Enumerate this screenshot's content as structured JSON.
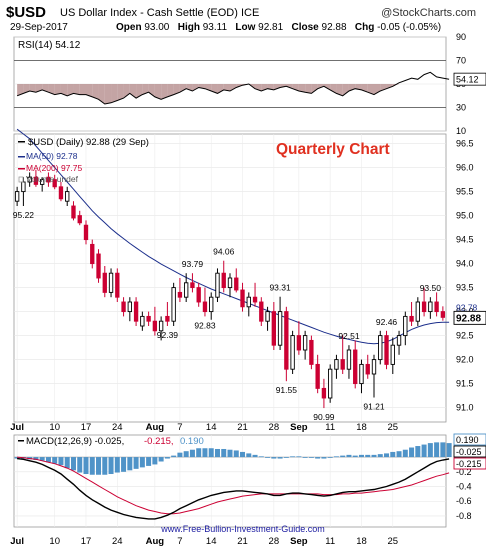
{
  "header": {
    "symbol": "$USD",
    "name": "US Dollar Index - Cash Settle (EOD)",
    "exchange": "ICE",
    "site": "@StockCharts.com",
    "date": "29-Sep-2017",
    "open_label": "Open",
    "open": "93.00",
    "high_label": "High",
    "high": "93.11",
    "low_label": "Low",
    "low": "92.81",
    "close_label": "Close",
    "close": "92.88",
    "chg_label": "Chg",
    "chg": "-0.05 (-0.05%)"
  },
  "annotation": "Quarterly Chart",
  "footer": "www.Free-Bullion-Investment-Guide.com",
  "colors": {
    "up": "#000000",
    "down": "#cc0033",
    "ma50": "#1c2f8c",
    "ma200": "#cc0033",
    "macd": "#000000",
    "signal": "#cc0033",
    "hist": "#4f93c8",
    "rsi": "#000000",
    "rsi_fill": "#b08585",
    "annotation": "#e03020"
  },
  "chart_data": [
    {
      "type": "line",
      "panel": "rsi",
      "label": "RSI(14) 54.12",
      "ylim": [
        10,
        90
      ],
      "y_ticks": [
        90,
        70,
        50,
        30,
        10
      ],
      "guide_levels": [
        70,
        30
      ],
      "last_value": "54.12",
      "values": [
        40,
        42,
        44,
        43,
        45,
        43,
        41,
        42,
        40,
        42,
        41,
        41,
        39,
        37,
        33,
        34,
        36,
        38,
        42,
        38,
        41,
        43,
        39,
        37,
        39,
        41,
        43,
        46,
        44,
        47,
        46,
        44,
        42,
        45,
        44,
        47,
        49,
        50,
        46,
        44,
        46,
        45,
        47,
        48,
        46,
        44,
        43,
        42,
        46,
        48,
        45,
        42,
        40,
        44,
        46,
        45,
        43,
        41,
        44,
        46,
        48,
        51,
        53,
        55,
        54,
        58,
        60,
        56,
        55,
        54
      ]
    },
    {
      "type": "candlestick",
      "panel": "price",
      "legend": [
        {
          "name": "$USD (Daily) 92.88 (29 Sep)"
        },
        {
          "name": "MA(50) 92.78"
        },
        {
          "name": "MA(200) 97.75"
        },
        {
          "name": "Volume undef"
        }
      ],
      "ylim": [
        90.7,
        96.7
      ],
      "y_ticks": [
        "96.5",
        "96.0",
        "95.5",
        "95.0",
        "94.5",
        "94.0",
        "93.5",
        "93.0",
        "92.5",
        "92.0",
        "91.5",
        "91.0"
      ],
      "x_ticks": [
        "Jul",
        "10",
        "17",
        "24",
        "Aug",
        "7",
        "14",
        "21",
        "28",
        "Sep",
        "11",
        "18",
        "25"
      ],
      "x_tick_index": [
        0,
        6,
        11,
        16,
        22,
        26,
        31,
        36,
        41,
        45,
        50,
        55,
        60
      ],
      "last_price_label": "92.88",
      "ma50_label": "92.78",
      "labels": [
        {
          "text": "95.22",
          "index": 1,
          "value": 95.22,
          "pos": "below"
        },
        {
          "text": "93.79",
          "index": 28,
          "value": 93.79,
          "pos": "above"
        },
        {
          "text": "94.06",
          "index": 33,
          "value": 94.06,
          "pos": "above"
        },
        {
          "text": "92.83",
          "index": 30,
          "value": 92.83,
          "pos": "below"
        },
        {
          "text": "92.39",
          "index": 24,
          "value": 92.39,
          "pos": "below"
        },
        {
          "text": "93.31",
          "index": 42,
          "value": 93.31,
          "pos": "above"
        },
        {
          "text": "91.55",
          "index": 43,
          "value": 91.55,
          "pos": "below"
        },
        {
          "text": "90.99",
          "index": 49,
          "value": 90.99,
          "pos": "below"
        },
        {
          "text": "92.51",
          "index": 53,
          "value": 92.51,
          "pos": "above"
        },
        {
          "text": "92.46",
          "index": 59,
          "value": 92.46,
          "pos": "above"
        },
        {
          "text": "91.21",
          "index": 57,
          "value": 91.21,
          "pos": "below"
        },
        {
          "text": "93.50",
          "index": 66,
          "value": 93.5,
          "pos": "above"
        }
      ],
      "candles": [
        {
          "o": 95.3,
          "h": 95.6,
          "l": 95.2,
          "c": 95.5
        },
        {
          "o": 95.5,
          "h": 95.8,
          "l": 95.2,
          "c": 95.7
        },
        {
          "o": 95.7,
          "h": 95.9,
          "l": 95.6,
          "c": 95.8
        },
        {
          "o": 95.8,
          "h": 95.95,
          "l": 95.6,
          "c": 95.65
        },
        {
          "o": 95.65,
          "h": 95.8,
          "l": 95.5,
          "c": 95.75
        },
        {
          "o": 95.8,
          "h": 95.9,
          "l": 95.6,
          "c": 95.7
        },
        {
          "o": 95.75,
          "h": 95.85,
          "l": 95.55,
          "c": 95.6
        },
        {
          "o": 95.6,
          "h": 95.7,
          "l": 95.3,
          "c": 95.35
        },
        {
          "o": 95.3,
          "h": 95.6,
          "l": 95.2,
          "c": 95.5
        },
        {
          "o": 95.2,
          "h": 95.3,
          "l": 94.9,
          "c": 94.95
        },
        {
          "o": 95.0,
          "h": 95.1,
          "l": 94.8,
          "c": 94.85
        },
        {
          "o": 94.8,
          "h": 94.9,
          "l": 94.4,
          "c": 94.5
        },
        {
          "o": 94.4,
          "h": 94.5,
          "l": 93.9,
          "c": 94.0
        },
        {
          "o": 94.2,
          "h": 94.3,
          "l": 93.6,
          "c": 93.7
        },
        {
          "o": 93.8,
          "h": 93.95,
          "l": 93.3,
          "c": 93.4
        },
        {
          "o": 93.4,
          "h": 93.9,
          "l": 93.3,
          "c": 93.8
        },
        {
          "o": 93.8,
          "h": 93.9,
          "l": 93.2,
          "c": 93.3
        },
        {
          "o": 93.2,
          "h": 93.3,
          "l": 92.9,
          "c": 93.0
        },
        {
          "o": 93.0,
          "h": 93.3,
          "l": 92.8,
          "c": 93.2
        },
        {
          "o": 93.2,
          "h": 93.3,
          "l": 92.7,
          "c": 92.8
        },
        {
          "o": 92.7,
          "h": 93.0,
          "l": 92.6,
          "c": 92.9
        },
        {
          "o": 92.9,
          "h": 93.0,
          "l": 92.7,
          "c": 92.8
        },
        {
          "o": 92.8,
          "h": 93.1,
          "l": 92.5,
          "c": 92.6
        },
        {
          "o": 92.6,
          "h": 92.9,
          "l": 92.4,
          "c": 92.8
        },
        {
          "o": 92.9,
          "h": 93.2,
          "l": 92.7,
          "c": 92.8
        },
        {
          "o": 92.8,
          "h": 93.6,
          "l": 92.7,
          "c": 93.5
        },
        {
          "o": 93.4,
          "h": 93.7,
          "l": 93.2,
          "c": 93.3
        },
        {
          "o": 93.3,
          "h": 93.8,
          "l": 93.2,
          "c": 93.6
        },
        {
          "o": 93.6,
          "h": 93.8,
          "l": 93.4,
          "c": 93.5
        },
        {
          "o": 93.5,
          "h": 93.6,
          "l": 93.1,
          "c": 93.2
        },
        {
          "o": 93.2,
          "h": 93.5,
          "l": 92.9,
          "c": 93.0
        },
        {
          "o": 93.0,
          "h": 93.4,
          "l": 92.83,
          "c": 93.3
        },
        {
          "o": 93.3,
          "h": 93.9,
          "l": 93.2,
          "c": 93.8
        },
        {
          "o": 93.8,
          "h": 94.06,
          "l": 93.4,
          "c": 93.5
        },
        {
          "o": 93.5,
          "h": 93.8,
          "l": 93.3,
          "c": 93.7
        },
        {
          "o": 93.7,
          "h": 93.9,
          "l": 93.4,
          "c": 93.45
        },
        {
          "o": 93.45,
          "h": 93.6,
          "l": 93.0,
          "c": 93.1
        },
        {
          "o": 93.1,
          "h": 93.4,
          "l": 92.9,
          "c": 93.3
        },
        {
          "o": 93.3,
          "h": 93.6,
          "l": 93.1,
          "c": 93.2
        },
        {
          "o": 93.2,
          "h": 93.3,
          "l": 92.7,
          "c": 92.8
        },
        {
          "o": 92.8,
          "h": 93.1,
          "l": 92.6,
          "c": 93.0
        },
        {
          "o": 93.0,
          "h": 93.2,
          "l": 92.2,
          "c": 92.3
        },
        {
          "o": 92.3,
          "h": 93.31,
          "l": 92.2,
          "c": 93.0
        },
        {
          "o": 93.0,
          "h": 93.1,
          "l": 91.55,
          "c": 91.8
        },
        {
          "o": 91.8,
          "h": 92.6,
          "l": 91.7,
          "c": 92.5
        },
        {
          "o": 92.5,
          "h": 92.8,
          "l": 92.1,
          "c": 92.2
        },
        {
          "o": 92.2,
          "h": 92.6,
          "l": 92.0,
          "c": 92.5
        },
        {
          "o": 92.4,
          "h": 92.5,
          "l": 91.8,
          "c": 91.9
        },
        {
          "o": 91.9,
          "h": 92.1,
          "l": 91.3,
          "c": 91.4
        },
        {
          "o": 91.4,
          "h": 91.6,
          "l": 90.99,
          "c": 91.2
        },
        {
          "o": 91.2,
          "h": 91.9,
          "l": 91.1,
          "c": 91.8
        },
        {
          "o": 91.8,
          "h": 92.1,
          "l": 91.6,
          "c": 92.0
        },
        {
          "o": 92.0,
          "h": 92.51,
          "l": 91.7,
          "c": 91.8
        },
        {
          "o": 91.8,
          "h": 92.3,
          "l": 91.6,
          "c": 92.2
        },
        {
          "o": 92.2,
          "h": 92.4,
          "l": 91.4,
          "c": 91.5
        },
        {
          "o": 91.5,
          "h": 92.0,
          "l": 91.3,
          "c": 91.9
        },
        {
          "o": 91.9,
          "h": 92.1,
          "l": 91.6,
          "c": 91.7
        },
        {
          "o": 91.7,
          "h": 92.1,
          "l": 91.21,
          "c": 92.0
        },
        {
          "o": 92.0,
          "h": 92.6,
          "l": 91.9,
          "c": 92.5
        },
        {
          "o": 92.5,
          "h": 92.6,
          "l": 91.8,
          "c": 91.9
        },
        {
          "o": 91.9,
          "h": 92.46,
          "l": 91.7,
          "c": 92.3
        },
        {
          "o": 92.3,
          "h": 92.6,
          "l": 92.1,
          "c": 92.5
        },
        {
          "o": 92.5,
          "h": 93.0,
          "l": 92.3,
          "c": 92.9
        },
        {
          "o": 92.9,
          "h": 93.2,
          "l": 92.7,
          "c": 92.8
        },
        {
          "o": 92.8,
          "h": 93.3,
          "l": 92.7,
          "c": 93.2
        },
        {
          "o": 93.2,
          "h": 93.5,
          "l": 92.9,
          "c": 93.0
        },
        {
          "o": 93.0,
          "h": 93.3,
          "l": 92.85,
          "c": 93.2
        },
        {
          "o": 93.2,
          "h": 93.4,
          "l": 92.9,
          "c": 93.0
        },
        {
          "o": 93.0,
          "h": 93.11,
          "l": 92.81,
          "c": 92.88
        }
      ],
      "ma50": [
        96.8,
        96.7,
        96.6,
        96.45,
        96.3,
        96.15,
        96.0,
        95.85,
        95.7,
        95.55,
        95.4,
        95.25,
        95.1,
        94.97,
        94.85,
        94.73,
        94.62,
        94.52,
        94.42,
        94.33,
        94.24,
        94.15,
        94.07,
        93.99,
        93.92,
        93.85,
        93.78,
        93.71,
        93.65,
        93.59,
        93.53,
        93.47,
        93.42,
        93.37,
        93.32,
        93.27,
        93.22,
        93.17,
        93.12,
        93.07,
        93.02,
        92.97,
        92.92,
        92.87,
        92.82,
        92.77,
        92.72,
        92.67,
        92.62,
        92.57,
        92.53,
        92.49,
        92.45,
        92.42,
        92.39,
        92.36,
        92.34,
        92.33,
        92.34,
        92.37,
        92.42,
        92.49,
        92.56,
        92.63,
        92.68,
        92.72,
        92.75,
        92.77,
        92.78,
        92.78
      ]
    },
    {
      "type": "line",
      "panel": "macd",
      "label_prefix": "MACD(12,26,9) ",
      "macd_value": "-0.025",
      "signal_value": "-0.215",
      "hist_value": "0.190",
      "ylim": [
        -0.95,
        0.3
      ],
      "y_ticks": [
        "-0.2",
        "-0.4",
        "-0.6",
        "-0.8"
      ],
      "right_labels": [
        "0.190",
        "-0.025",
        "-0.215"
      ],
      "macd": [
        -0.02,
        -0.03,
        -0.05,
        -0.07,
        -0.1,
        -0.14,
        -0.18,
        -0.23,
        -0.3,
        -0.37,
        -0.45,
        -0.52,
        -0.58,
        -0.63,
        -0.68,
        -0.72,
        -0.75,
        -0.78,
        -0.8,
        -0.82,
        -0.83,
        -0.84,
        -0.84,
        -0.82,
        -0.79,
        -0.75,
        -0.7,
        -0.66,
        -0.62,
        -0.58,
        -0.55,
        -0.52,
        -0.5,
        -0.48,
        -0.47,
        -0.46,
        -0.46,
        -0.47,
        -0.48,
        -0.49,
        -0.5,
        -0.52,
        -0.52,
        -0.5,
        -0.49,
        -0.49,
        -0.5,
        -0.51,
        -0.52,
        -0.53,
        -0.52,
        -0.5,
        -0.48,
        -0.47,
        -0.47,
        -0.46,
        -0.45,
        -0.44,
        -0.42,
        -0.4,
        -0.37,
        -0.34,
        -0.3,
        -0.25,
        -0.2,
        -0.15,
        -0.1,
        -0.06,
        -0.04,
        -0.025
      ],
      "signal": [
        -0.0,
        -0.01,
        -0.02,
        -0.03,
        -0.05,
        -0.07,
        -0.09,
        -0.12,
        -0.15,
        -0.19,
        -0.24,
        -0.29,
        -0.34,
        -0.39,
        -0.44,
        -0.49,
        -0.54,
        -0.58,
        -0.62,
        -0.66,
        -0.69,
        -0.72,
        -0.74,
        -0.76,
        -0.77,
        -0.77,
        -0.76,
        -0.74,
        -0.72,
        -0.7,
        -0.67,
        -0.64,
        -0.61,
        -0.59,
        -0.57,
        -0.55,
        -0.53,
        -0.52,
        -0.51,
        -0.5,
        -0.5,
        -0.5,
        -0.5,
        -0.5,
        -0.5,
        -0.5,
        -0.5,
        -0.5,
        -0.5,
        -0.51,
        -0.51,
        -0.51,
        -0.5,
        -0.5,
        -0.49,
        -0.49,
        -0.48,
        -0.47,
        -0.46,
        -0.45,
        -0.44,
        -0.42,
        -0.4,
        -0.38,
        -0.35,
        -0.32,
        -0.29,
        -0.26,
        -0.24,
        -0.215
      ]
    }
  ]
}
